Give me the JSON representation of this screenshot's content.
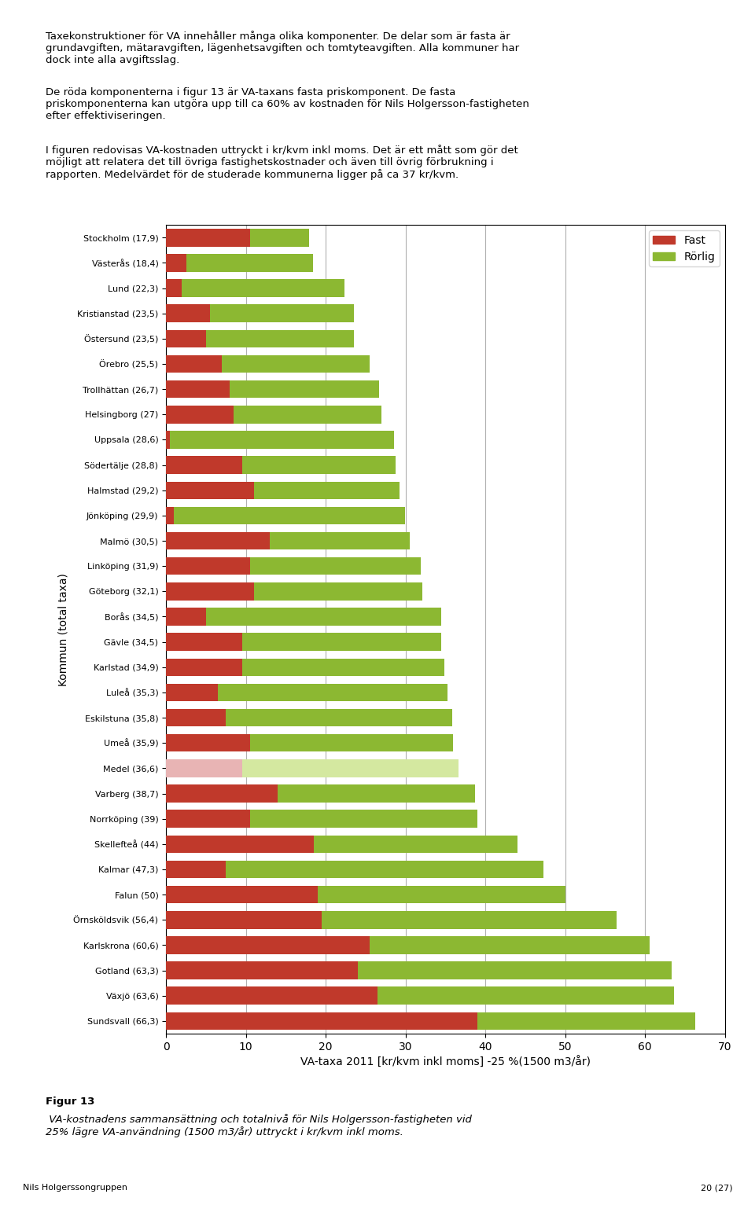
{
  "chart_data": {
    "type": "bar",
    "orientation": "horizontal",
    "stacked": true,
    "categories": [
      "Stockholm (17,9)",
      "Västerås (18,4)",
      "Lund (22,3)",
      "Kristianstad (23,5)",
      "Östersund (23,5)",
      "Örebro (25,5)",
      "Trollhättan (26,7)",
      "Helsingborg (27)",
      "Uppsala (28,6)",
      "Södertälje (28,8)",
      "Halmstad (29,2)",
      "Jönköping (29,9)",
      "Malmö (30,5)",
      "Linköping (31,9)",
      "Göteborg (32,1)",
      "Borås (34,5)",
      "Gävle (34,5)",
      "Karlstad (34,9)",
      "Luleå (35,3)",
      "Eskilstuna (35,8)",
      "Umeå (35,9)",
      "Medel (36,6)",
      "Varberg (38,7)",
      "Norrköping (39)",
      "Skellefteå (44)",
      "Kalmar (47,3)",
      "Falun (50)",
      "Örnsköldsvik (56,4)",
      "Karlskrona (60,6)",
      "Gotland (63,3)",
      "Växjö (63,6)",
      "Sundsvall (66,3)"
    ],
    "series": [
      {
        "name": "Fast",
        "color": "#c0392b",
        "values": [
          10.5,
          2.5,
          2.0,
          5.5,
          5.0,
          7.0,
          8.0,
          8.5,
          0.5,
          9.5,
          11.0,
          1.0,
          13.0,
          10.5,
          11.0,
          5.0,
          9.5,
          9.5,
          6.5,
          7.5,
          10.5,
          9.5,
          14.0,
          10.5,
          18.5,
          7.5,
          19.0,
          19.5,
          25.5,
          24.0,
          26.5,
          39.0
        ],
        "colors": [
          "#c0392b",
          "#c0392b",
          "#c0392b",
          "#c0392b",
          "#c0392b",
          "#c0392b",
          "#c0392b",
          "#c0392b",
          "#c0392b",
          "#c0392b",
          "#c0392b",
          "#c0392b",
          "#c0392b",
          "#c0392b",
          "#c0392b",
          "#c0392b",
          "#c0392b",
          "#c0392b",
          "#c0392b",
          "#c0392b",
          "#c0392b",
          "#e8b4b4",
          "#c0392b",
          "#c0392b",
          "#c0392b",
          "#c0392b",
          "#c0392b",
          "#c0392b",
          "#c0392b",
          "#c0392b",
          "#c0392b",
          "#c0392b"
        ]
      },
      {
        "name": "Rörlig",
        "color": "#8cb832",
        "values": [
          7.4,
          15.9,
          20.3,
          18.0,
          18.5,
          18.5,
          18.7,
          18.5,
          28.1,
          19.3,
          18.2,
          28.9,
          17.5,
          21.4,
          21.1,
          29.5,
          25.0,
          25.4,
          28.8,
          28.3,
          25.4,
          27.1,
          24.7,
          28.5,
          25.5,
          39.8,
          31.0,
          36.9,
          35.1,
          39.3,
          37.1,
          27.3
        ],
        "colors": [
          "#8cb832",
          "#8cb832",
          "#8cb832",
          "#8cb832",
          "#8cb832",
          "#8cb832",
          "#8cb832",
          "#8cb832",
          "#8cb832",
          "#8cb832",
          "#8cb832",
          "#8cb832",
          "#8cb832",
          "#8cb832",
          "#8cb832",
          "#8cb832",
          "#8cb832",
          "#8cb832",
          "#8cb832",
          "#8cb832",
          "#8cb832",
          "#d4e8a0",
          "#8cb832",
          "#8cb832",
          "#8cb832",
          "#8cb832",
          "#8cb832",
          "#8cb832",
          "#8cb832",
          "#8cb832",
          "#8cb832",
          "#8cb832"
        ]
      }
    ],
    "xlabel": "VA-taxa 2011 [kr/kvm inkl moms] -25 %(1500 m3/år)",
    "ylabel": "Kommun (total taxa)",
    "xlim": [
      0,
      70
    ],
    "xticks": [
      0,
      10,
      20,
      30,
      40,
      50,
      60,
      70
    ],
    "grid": true,
    "legend": "upper right",
    "annotations": [
      "Taxekonstruktioner för VA innehåller många olika komponenter. De delar som är fasta är\ngrundavgiften, mätaravgiften, lägenhetsavgiften och tomtyteavgiften. Alla kommuner har\ndock inte alla avgiftsslag.",
      "De röda komponenterna i figur 13 är VA-taxans fasta priskomponent. De fasta\npriskomponenterna kan utgöra upp till ca 60% av kostnaden för Nils Holgersson-fastigheten\nefter effektiviseringen.",
      "I figuren redovisas VA-kostnaden uttryckt i kr/kvm inkl moms. Det är ett mått som gör det\nmöjligt att relatera det till övriga fastighetskostnader och även till övrig förbrukning i\nrapporten. Medelvärdet för de studerade kommunerna ligger på ca 37 kr/kvm.",
      "Figur 13",
      " VA-kostnadens sammansättning och totalnivå för Nils Holgersson-fastigheten vid\n25% lägre VA-användning (1500 m3/år) uttryckt i kr/kvm inkl moms.",
      "Nils Holgerssongruppen",
      "20 (27)"
    ]
  }
}
